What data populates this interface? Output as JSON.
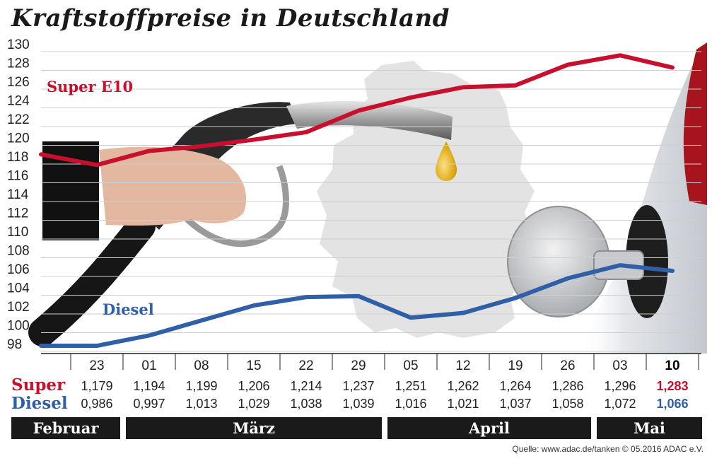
{
  "title": "Kraftstoffpreise in Deutschland",
  "source": "Quelle: www.adac.de/tanken   © 05.2016  ADAC e.V.",
  "colors": {
    "super": "#c8102e",
    "diesel": "#2f5fa6",
    "month_band": "#1a1a1a"
  },
  "chart_data": {
    "type": "line",
    "title": "Kraftstoffpreise in Deutschland",
    "x": [
      "23",
      "01",
      "08",
      "15",
      "22",
      "29",
      "05",
      "12",
      "19",
      "26",
      "03",
      "10"
    ],
    "ylim": [
      98,
      130
    ],
    "yticks": [
      98,
      100,
      102,
      104,
      106,
      108,
      110,
      112,
      114,
      116,
      118,
      120,
      122,
      124,
      126,
      128,
      130
    ],
    "grid": true,
    "series": [
      {
        "name": "Super E10",
        "row_label": "Super",
        "values": [
          117.9,
          119.4,
          119.9,
          120.6,
          121.4,
          123.7,
          125.1,
          126.2,
          126.4,
          128.6,
          129.6,
          128.3
        ],
        "value_labels": [
          "1,179",
          "1,194",
          "1,199",
          "1,206",
          "1,214",
          "1,237",
          "1,251",
          "1,262",
          "1,264",
          "1,286",
          "1,296",
          "1,283"
        ]
      },
      {
        "name": "Diesel",
        "row_label": "Diesel",
        "values": [
          98.6,
          99.7,
          101.3,
          102.9,
          103.8,
          103.9,
          101.6,
          102.1,
          103.7,
          105.8,
          107.2,
          106.6
        ],
        "value_labels": [
          "0,986",
          "0,997",
          "1,013",
          "1,029",
          "1,038",
          "1,039",
          "1,016",
          "1,021",
          "1,037",
          "1,058",
          "1,072",
          "1,066"
        ]
      }
    ],
    "months": [
      {
        "label": "Februar",
        "from": -1,
        "to": 0
      },
      {
        "label": "März",
        "from": 1,
        "to": 5
      },
      {
        "label": "April",
        "from": 6,
        "to": 9
      },
      {
        "label": "Mai",
        "from": 10,
        "to": 11
      }
    ]
  }
}
